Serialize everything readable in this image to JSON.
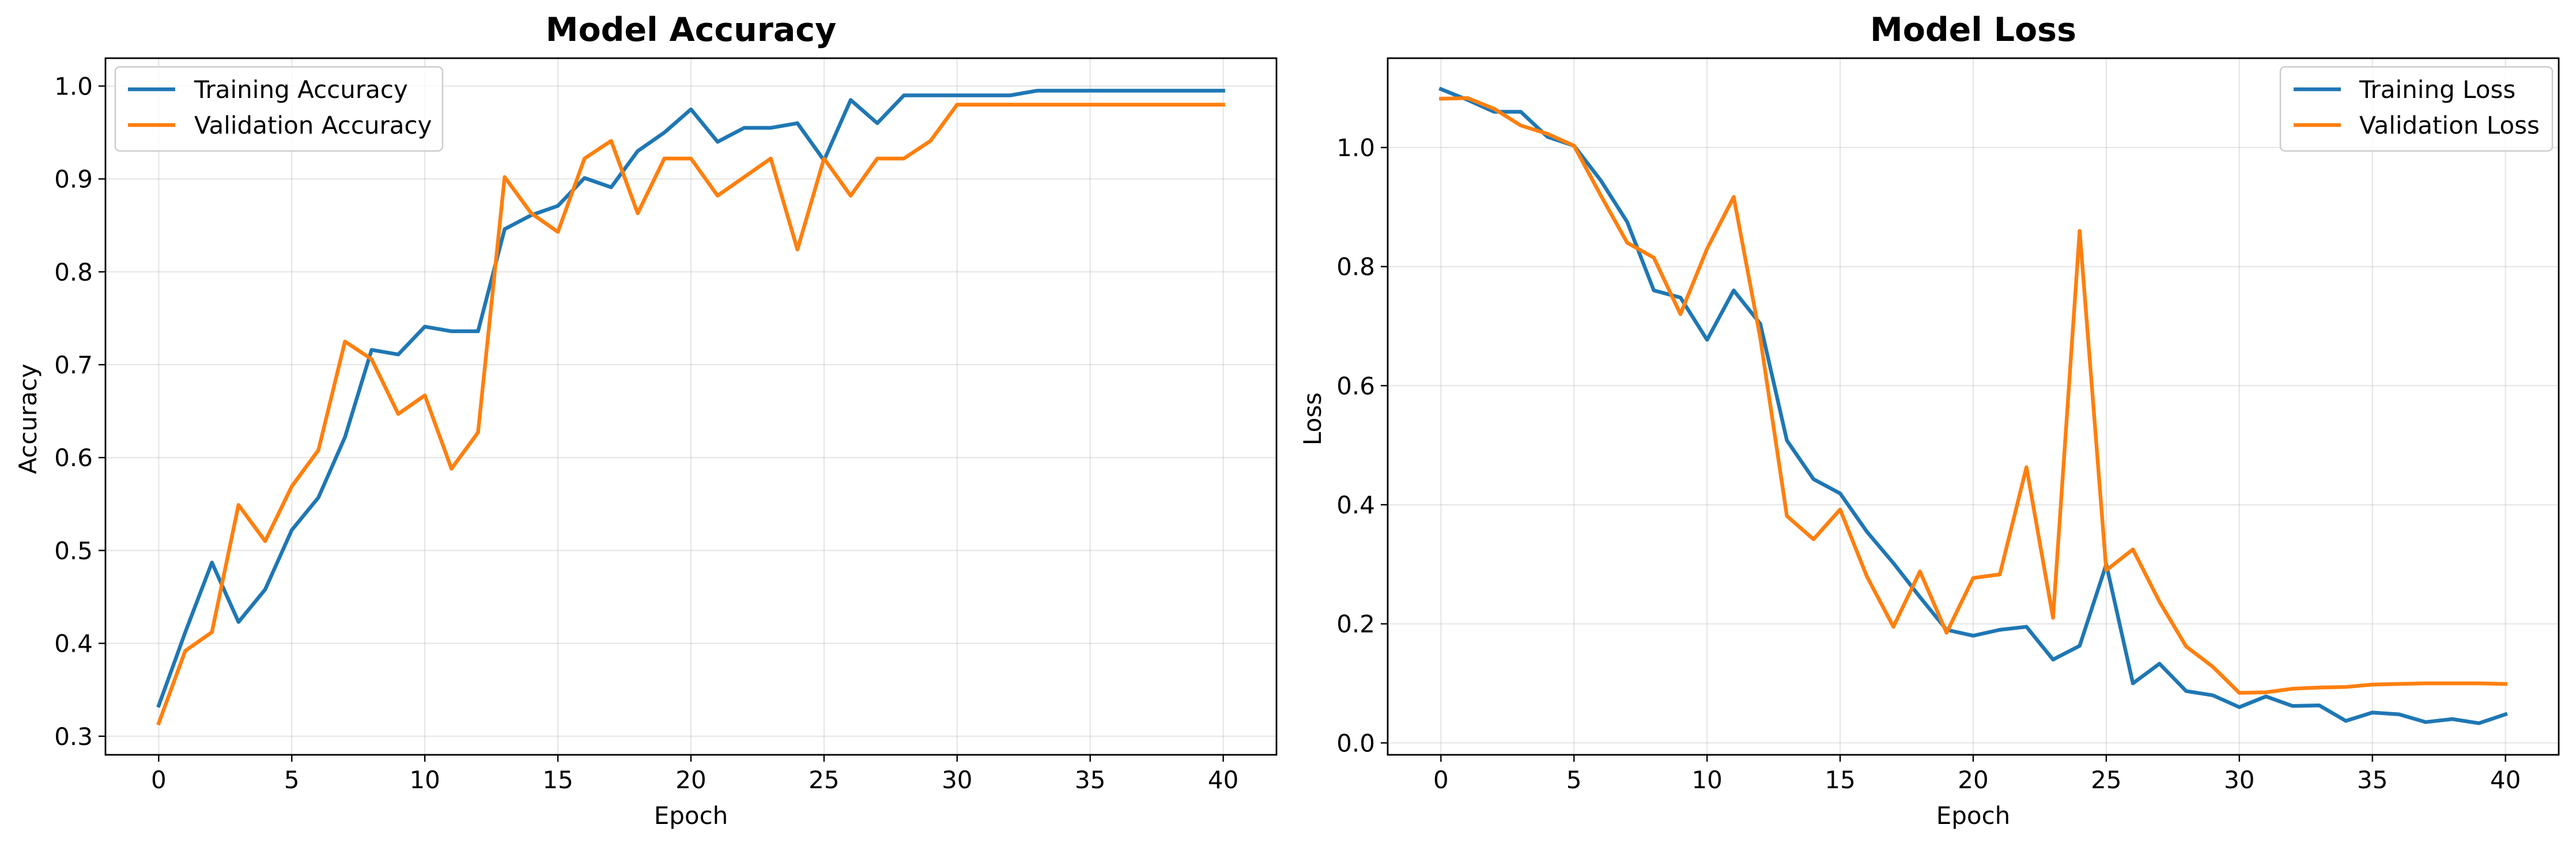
{
  "chart_data": [
    {
      "type": "line",
      "title": "Model Accuracy",
      "xlabel": "Epoch",
      "ylabel": "Accuracy",
      "xlim": [
        -2,
        42
      ],
      "ylim": [
        0.28,
        1.03
      ],
      "xticks": [
        0,
        5,
        10,
        15,
        20,
        25,
        30,
        35,
        40
      ],
      "yticks": [
        0.3,
        0.4,
        0.5,
        0.6,
        0.7,
        0.8,
        0.9,
        1.0
      ],
      "ytick_labels": [
        "0.3",
        "0.4",
        "0.5",
        "0.6",
        "0.7",
        "0.8",
        "0.9",
        "1.0"
      ],
      "grid": true,
      "legend_position": "upper-left",
      "x": [
        0,
        1,
        2,
        3,
        4,
        5,
        6,
        7,
        8,
        9,
        10,
        11,
        12,
        13,
        14,
        15,
        16,
        17,
        18,
        19,
        20,
        21,
        22,
        23,
        24,
        25,
        26,
        27,
        28,
        29,
        30,
        31,
        32,
        33,
        34,
        35,
        36,
        37,
        38,
        39,
        40
      ],
      "series": [
        {
          "name": "Training Accuracy",
          "color": "#1f77b4",
          "values": [
            0.333,
            0.412,
            0.487,
            0.423,
            0.458,
            0.522,
            0.557,
            0.622,
            0.716,
            0.711,
            0.741,
            0.736,
            0.736,
            0.846,
            0.861,
            0.871,
            0.901,
            0.891,
            0.93,
            0.95,
            0.975,
            0.94,
            0.955,
            0.955,
            0.96,
            0.92,
            0.985,
            0.96,
            0.99,
            0.99,
            0.99,
            0.99,
            0.99,
            0.995,
            0.995,
            0.995,
            0.995,
            0.995,
            0.995,
            0.995,
            0.995
          ]
        },
        {
          "name": "Validation Accuracy",
          "color": "#ff7f0e",
          "values": [
            0.314,
            0.392,
            0.412,
            0.549,
            0.51,
            0.569,
            0.608,
            0.725,
            0.706,
            0.647,
            0.667,
            0.588,
            0.627,
            0.902,
            0.863,
            0.843,
            0.922,
            0.941,
            0.863,
            0.922,
            0.922,
            0.882,
            0.902,
            0.922,
            0.824,
            0.922,
            0.882,
            0.922,
            0.922,
            0.941,
            0.98,
            0.98,
            0.98,
            0.98,
            0.98,
            0.98,
            0.98,
            0.98,
            0.98,
            0.98,
            0.98
          ]
        }
      ]
    },
    {
      "type": "line",
      "title": "Model Loss",
      "xlabel": "Epoch",
      "ylabel": "Loss",
      "xlim": [
        -2,
        42
      ],
      "ylim": [
        -0.02,
        1.15
      ],
      "xticks": [
        0,
        5,
        10,
        15,
        20,
        25,
        30,
        35,
        40
      ],
      "yticks": [
        0.0,
        0.2,
        0.4,
        0.6,
        0.8,
        1.0
      ],
      "ytick_labels": [
        "0.0",
        "0.2",
        "0.4",
        "0.6",
        "0.8",
        "1.0"
      ],
      "grid": true,
      "legend_position": "upper-right",
      "x": [
        0,
        1,
        2,
        3,
        4,
        5,
        6,
        7,
        8,
        9,
        10,
        11,
        12,
        13,
        14,
        15,
        16,
        17,
        18,
        19,
        20,
        21,
        22,
        23,
        24,
        25,
        26,
        27,
        28,
        29,
        30,
        31,
        32,
        33,
        34,
        35,
        36,
        37,
        38,
        39,
        40
      ],
      "series": [
        {
          "name": "Training Loss",
          "color": "#1f77b4",
          "values": [
            1.098,
            1.08,
            1.06,
            1.06,
            1.018,
            1.003,
            0.945,
            0.875,
            0.76,
            0.748,
            0.677,
            0.76,
            0.704,
            0.508,
            0.443,
            0.419,
            0.355,
            0.302,
            0.245,
            0.19,
            0.18,
            0.19,
            0.195,
            0.14,
            0.163,
            0.3,
            0.1,
            0.133,
            0.087,
            0.08,
            0.06,
            0.078,
            0.062,
            0.063,
            0.037,
            0.051,
            0.048,
            0.035,
            0.04,
            0.033,
            0.048
          ]
        },
        {
          "name": "Validation Loss",
          "color": "#ff7f0e",
          "values": [
            1.082,
            1.083,
            1.065,
            1.037,
            1.023,
            1.003,
            0.92,
            0.84,
            0.815,
            0.72,
            0.83,
            0.917,
            0.68,
            0.381,
            0.342,
            0.392,
            0.28,
            0.195,
            0.288,
            0.185,
            0.277,
            0.283,
            0.463,
            0.21,
            0.86,
            0.29,
            0.325,
            0.237,
            0.162,
            0.128,
            0.084,
            0.085,
            0.091,
            0.093,
            0.094,
            0.098,
            0.099,
            0.1,
            0.1,
            0.1,
            0.099
          ]
        }
      ]
    }
  ]
}
